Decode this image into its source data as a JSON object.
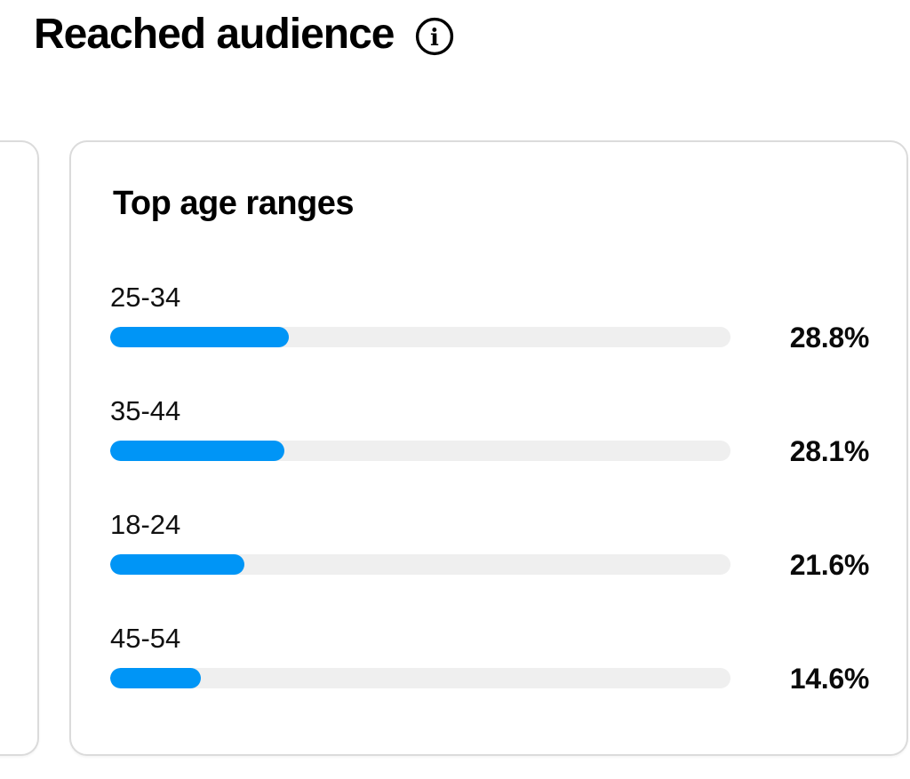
{
  "page": {
    "title": "Reached audience"
  },
  "card": {
    "title": "Top age ranges",
    "rows": [
      {
        "label": "25-34",
        "value": "28.8%",
        "percent": 28.8
      },
      {
        "label": "35-44",
        "value": "28.1%",
        "percent": 28.1
      },
      {
        "label": "18-24",
        "value": "21.6%",
        "percent": 21.6
      },
      {
        "label": "45-54",
        "value": "14.6%",
        "percent": 14.6
      }
    ]
  },
  "chart_data": {
    "type": "bar",
    "orientation": "horizontal",
    "title": "Top age ranges",
    "categories": [
      "25-34",
      "35-44",
      "18-24",
      "45-54"
    ],
    "values": [
      28.8,
      28.1,
      21.6,
      14.6
    ],
    "value_labels": [
      "28.8%",
      "28.1%",
      "21.6%",
      "14.6%"
    ],
    "unit": "%",
    "xlim": [
      0,
      100
    ],
    "sort_order": "descending",
    "grid": false,
    "legend": false
  },
  "icons": {
    "info": "circled-letter-i"
  },
  "colors": {
    "bar_fill": "#0095f6",
    "bar_track": "#efefef",
    "card_border": "#dbdbdb",
    "text": "#000000",
    "background": "#ffffff"
  }
}
